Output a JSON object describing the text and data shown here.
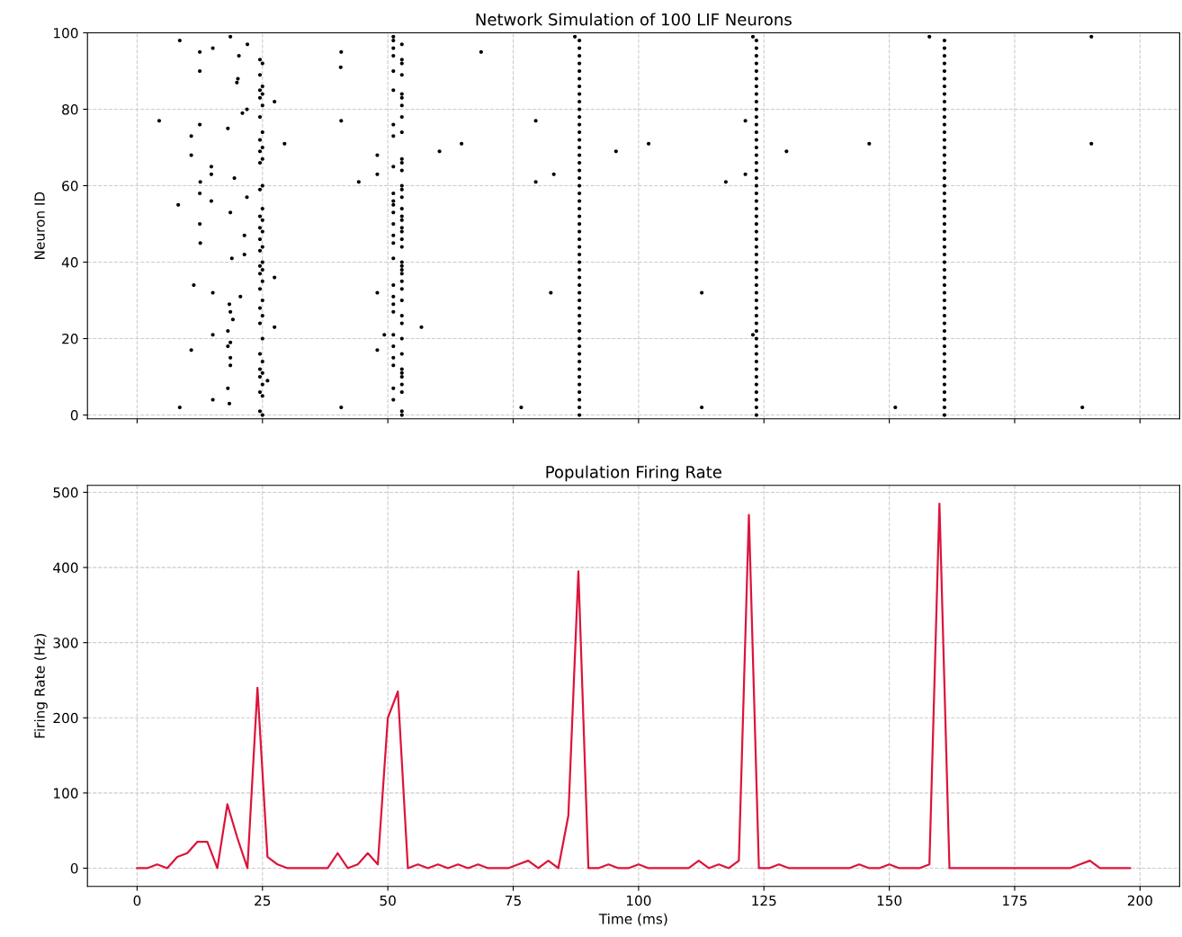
{
  "chart_data": [
    {
      "type": "scatter",
      "title": "Network Simulation of 100 LIF Neurons",
      "ylabel": "Neuron ID",
      "xlim": [
        -9.9,
        207.9
      ],
      "ylim": [
        -1,
        100
      ],
      "xticks": [
        0,
        25,
        50,
        75,
        100,
        125,
        150,
        175,
        200
      ],
      "yticks": [
        0,
        20,
        40,
        60,
        80,
        100
      ],
      "tick_labels": "y",
      "grid": true,
      "marker": "circle",
      "series": [
        {
          "color": "#000000",
          "x": [
            8.5,
            18.6,
            22,
            12.5,
            15.1,
            20.3,
            12.5,
            20.1,
            19.9,
            21.9,
            21,
            4.4,
            12.5,
            18.1,
            10.8,
            10.8,
            14.8,
            14.8,
            19.4,
            12.6,
            12.5,
            21.9,
            14.8,
            8.2,
            18.6,
            12.5,
            21.4,
            12.6,
            21.4,
            18.9,
            11.3,
            15.1,
            20.6,
            18.4,
            18.6,
            19.1,
            18.1,
            15.1,
            18.6,
            18.1,
            10.8,
            18.6,
            18.6,
            18.1,
            15.1,
            18.4,
            8.5,
            27.4,
            29.4,
            27.4,
            27.4,
            26
          ],
          "values": [
            98,
            99,
            97,
            95,
            96,
            94,
            90,
            88,
            87,
            80,
            79,
            77,
            76,
            75,
            73,
            68,
            65,
            63,
            62,
            61,
            58,
            57,
            56,
            55,
            53,
            50,
            47,
            45,
            42,
            41,
            34,
            32,
            31,
            29,
            27,
            25,
            22,
            21,
            19,
            18,
            17,
            15,
            13,
            7,
            4,
            3,
            2,
            82,
            71,
            36,
            23,
            9
          ]
        },
        {
          "color": "#000000",
          "x": [
            24.5,
            25,
            24.5,
            25,
            24.5,
            25,
            24.5,
            25,
            24.5,
            25,
            24.5,
            25,
            24.5,
            25,
            24.5,
            25,
            24.5,
            25,
            24.5,
            25,
            24.5,
            25,
            24.5,
            25,
            24.5,
            25,
            24.5,
            25,
            24.5,
            25,
            24.5,
            25,
            24.5,
            25,
            24.5,
            25,
            24.5,
            25,
            24.5,
            25,
            24.5,
            25,
            24.5,
            25,
            24.5,
            25
          ],
          "values": [
            93,
            92,
            89,
            86,
            85,
            84,
            83,
            81,
            78,
            74,
            72,
            70,
            69,
            67,
            66,
            60,
            59,
            54,
            52,
            51,
            49,
            48,
            46,
            44,
            43,
            40,
            39,
            38,
            37,
            35,
            33,
            30,
            28,
            26,
            24,
            20,
            16,
            14,
            12,
            11,
            10,
            8,
            6,
            5,
            1,
            0
          ]
        },
        {
          "color": "#000000",
          "x": [
            40.7,
            40.6,
            40.7,
            47.9,
            47.9,
            44.2,
            47.9,
            49.3,
            47.9,
            40.7,
            60.3,
            56.7,
            68.6,
            64.7,
            79.5,
            95.5,
            83.1,
            79.5,
            82.5,
            76.6,
            102,
            121.3,
            121.3,
            117.4,
            112.6,
            112.6,
            129.5,
            158,
            146,
            151.2,
            190.3,
            190.3,
            188.5,
            87.3,
            122.8,
            122.8
          ],
          "values": [
            95,
            91,
            77,
            68,
            63,
            61,
            32,
            21,
            17,
            2,
            69,
            23,
            95,
            71,
            77,
            69,
            63,
            61,
            32,
            2,
            71,
            77,
            63,
            61,
            32,
            2,
            69,
            99,
            71,
            2,
            99,
            71,
            2,
            99,
            99,
            21
          ]
        },
        {
          "color": "#000000",
          "x": [
            51.1,
            51.1,
            51.1,
            51.1,
            51.1,
            51.1,
            51.1,
            51.1,
            51.1,
            51.1,
            51.1,
            51.1,
            51.1,
            51.1,
            51.1,
            51.1,
            51.1,
            51.1,
            51.1,
            51.1,
            51.1,
            51.1,
            51.1,
            51.1,
            51.1,
            51.1,
            51.1
          ],
          "values": [
            99,
            98,
            96,
            94,
            90,
            85,
            76,
            73,
            65,
            58,
            56,
            55,
            53,
            50,
            47,
            45,
            41,
            34,
            31,
            29,
            27,
            21,
            18,
            15,
            13,
            7,
            4
          ]
        },
        {
          "color": "#000000",
          "x": [
            52.8,
            52.8,
            52.8,
            52.8,
            52.8,
            52.8,
            52.8,
            52.8,
            52.8,
            52.8,
            52.8,
            52.8,
            52.8,
            52.8,
            52.8,
            52.8,
            52.8,
            52.8,
            52.8,
            52.8,
            52.8,
            52.8,
            52.8,
            52.8,
            52.8,
            52.8,
            52.8,
            52.8,
            52.8,
            52.8,
            52.8,
            52.8,
            52.8,
            52.8,
            52.8,
            52.8,
            52.8,
            52.8,
            52.8,
            52.8
          ],
          "values": [
            97,
            93,
            92,
            89,
            84,
            83,
            81,
            78,
            74,
            67,
            66,
            64,
            60,
            59,
            57,
            54,
            52,
            51,
            49,
            48,
            46,
            44,
            40,
            39,
            38,
            37,
            35,
            33,
            30,
            26,
            24,
            20,
            16,
            12,
            11,
            10,
            8,
            6,
            1,
            0
          ]
        },
        {
          "color": "#000000",
          "x": [
            88.2,
            88.2,
            88.2,
            88.2,
            88.2,
            88.2,
            88.2,
            88.2,
            88.2,
            88.2,
            88.2,
            88.2,
            88.2,
            88.2,
            88.2,
            88.2,
            88.2,
            88.2,
            88.2,
            88.2,
            88.2,
            88.2,
            88.2,
            88.2,
            88.2,
            88.2,
            88.2,
            88.2,
            88.2,
            88.2,
            88.2,
            88.2,
            88.2,
            88.2,
            88.2,
            88.2,
            88.2,
            88.2,
            88.2,
            88.2,
            88.2,
            88.2,
            88.2,
            88.2,
            88.2,
            88.2,
            88.2,
            88.2,
            88.2,
            88.2
          ],
          "values": [
            0,
            2,
            4,
            6,
            8,
            10,
            12,
            14,
            16,
            18,
            20,
            22,
            24,
            26,
            28,
            30,
            32,
            34,
            36,
            38,
            40,
            42,
            44,
            46,
            48,
            50,
            52,
            54,
            56,
            58,
            60,
            62,
            64,
            66,
            68,
            70,
            72,
            74,
            76,
            78,
            80,
            82,
            84,
            86,
            88,
            90,
            92,
            94,
            96,
            98
          ]
        },
        {
          "color": "#000000",
          "x": [
            123.5,
            123.5,
            123.5,
            123.5,
            123.5,
            123.5,
            123.5,
            123.5,
            123.5,
            123.5,
            123.5,
            123.5,
            123.5,
            123.5,
            123.5,
            123.5,
            123.5,
            123.5,
            123.5,
            123.5,
            123.5,
            123.5,
            123.5,
            123.5,
            123.5,
            123.5,
            123.5,
            123.5,
            123.5,
            123.5,
            123.5,
            123.5,
            123.5,
            123.5,
            123.5,
            123.5,
            123.5,
            123.5,
            123.5,
            123.5,
            123.5,
            123.5,
            123.5,
            123.5,
            123.5,
            123.5,
            123.5,
            123.5,
            123.5,
            123.5
          ],
          "values": [
            0,
            2,
            4,
            6,
            8,
            10,
            12,
            14,
            16,
            18,
            20,
            22,
            24,
            26,
            28,
            30,
            32,
            34,
            36,
            38,
            40,
            42,
            44,
            46,
            48,
            50,
            52,
            54,
            56,
            58,
            60,
            62,
            64,
            66,
            68,
            70,
            72,
            74,
            76,
            78,
            80,
            82,
            84,
            86,
            88,
            90,
            92,
            94,
            96,
            98
          ]
        },
        {
          "color": "#000000",
          "x": [
            161,
            161,
            161,
            161,
            161,
            161,
            161,
            161,
            161,
            161,
            161,
            161,
            161,
            161,
            161,
            161,
            161,
            161,
            161,
            161,
            161,
            161,
            161,
            161,
            161,
            161,
            161,
            161,
            161,
            161,
            161,
            161,
            161,
            161,
            161,
            161,
            161,
            161,
            161,
            161,
            161,
            161,
            161,
            161,
            161,
            161,
            161,
            161,
            161,
            161
          ],
          "values": [
            0,
            2,
            4,
            6,
            8,
            10,
            12,
            14,
            16,
            18,
            20,
            22,
            24,
            26,
            28,
            30,
            32,
            34,
            36,
            38,
            40,
            42,
            44,
            46,
            48,
            50,
            52,
            54,
            56,
            58,
            60,
            62,
            64,
            66,
            68,
            70,
            72,
            74,
            76,
            78,
            80,
            82,
            84,
            86,
            88,
            90,
            92,
            94,
            96,
            98
          ]
        }
      ]
    },
    {
      "type": "line",
      "title": "Population Firing Rate",
      "xlabel": "Time (ms)",
      "ylabel": "Firing Rate (Hz)",
      "xlim": [
        -9.9,
        207.9
      ],
      "ylim": [
        -24.25,
        509.25
      ],
      "xticks": [
        0,
        25,
        50,
        75,
        100,
        125,
        150,
        175,
        200
      ],
      "yticks": [
        0,
        100,
        200,
        300,
        400,
        500
      ],
      "grid": true,
      "marker": "none",
      "line_style": "solid",
      "series": [
        {
          "color": "#dc143c",
          "x": [
            0,
            2,
            4,
            6,
            8,
            10,
            12,
            14,
            16,
            18,
            20,
            22,
            24,
            26,
            28,
            30,
            32,
            34,
            36,
            38,
            40,
            42,
            44,
            46,
            48,
            50,
            52,
            54,
            56,
            58,
            60,
            62,
            64,
            66,
            68,
            70,
            72,
            74,
            76,
            78,
            80,
            82,
            84,
            86,
            88,
            90,
            92,
            94,
            96,
            98,
            100,
            102,
            104,
            106,
            108,
            110,
            112,
            114,
            116,
            118,
            120,
            122,
            124,
            126,
            128,
            130,
            132,
            134,
            136,
            138,
            140,
            142,
            144,
            146,
            148,
            150,
            152,
            154,
            156,
            158,
            160,
            162,
            164,
            166,
            168,
            170,
            172,
            174,
            176,
            178,
            180,
            182,
            184,
            186,
            188,
            190,
            192,
            194,
            196,
            198
          ],
          "values": [
            0,
            0,
            5,
            0,
            15,
            20,
            35,
            35,
            0,
            85,
            40,
            0,
            240,
            15,
            5,
            0,
            0,
            0,
            0,
            0,
            20,
            0,
            5,
            20,
            5,
            200,
            235,
            0,
            5,
            0,
            5,
            0,
            5,
            0,
            5,
            0,
            0,
            0,
            5,
            10,
            0,
            10,
            0,
            70,
            395,
            0,
            0,
            5,
            0,
            0,
            5,
            0,
            0,
            0,
            0,
            0,
            10,
            0,
            5,
            0,
            10,
            470,
            0,
            0,
            5,
            0,
            0,
            0,
            0,
            0,
            0,
            0,
            5,
            0,
            0,
            5,
            0,
            0,
            0,
            5,
            485,
            0,
            0,
            0,
            0,
            0,
            0,
            0,
            0,
            0,
            0,
            0,
            0,
            0,
            5,
            10,
            0,
            0,
            0,
            0
          ]
        }
      ]
    }
  ]
}
